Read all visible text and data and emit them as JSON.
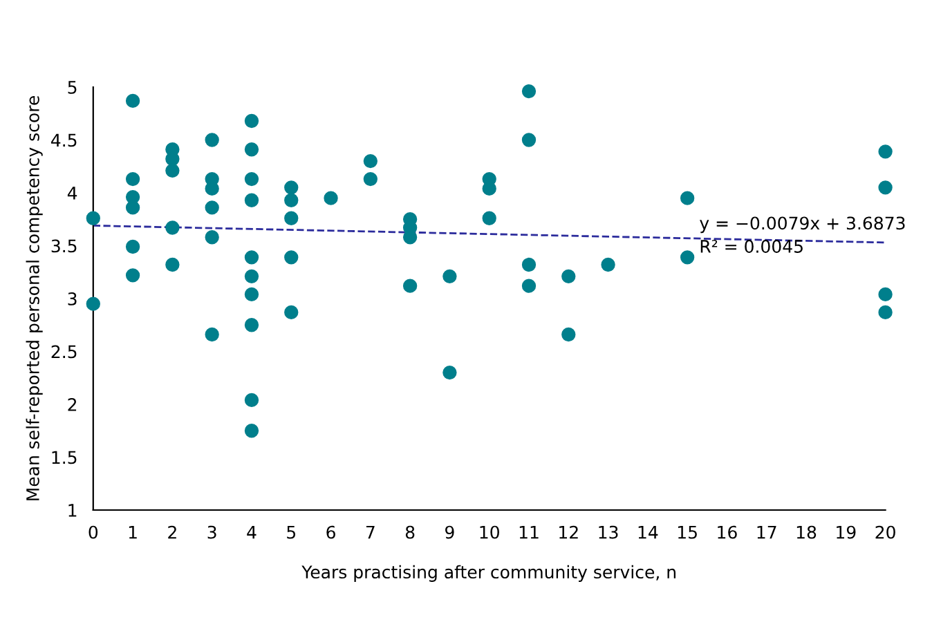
{
  "chart_data": {
    "type": "scatter",
    "xlabel": "Years practising after community service, n",
    "ylabel": "Mean self-reported personal competency score",
    "xlim": [
      0,
      20
    ],
    "xticks": [
      0,
      1,
      2,
      3,
      4,
      5,
      6,
      7,
      8,
      9,
      10,
      11,
      12,
      13,
      14,
      15,
      16,
      17,
      18,
      19,
      20
    ],
    "ylim": [
      1,
      5
    ],
    "yticks": [
      1,
      1.5,
      2,
      2.5,
      3,
      3.5,
      4,
      4.5,
      5
    ],
    "grid": false,
    "legend": false,
    "series": [
      {
        "color": "#007f8c",
        "marker": "circle",
        "x": [
          0,
          0,
          1,
          1,
          1,
          1,
          1,
          1,
          2,
          2,
          2,
          2,
          2,
          3,
          3,
          3,
          3,
          3,
          3,
          4,
          4,
          4,
          4,
          4,
          4,
          4,
          4,
          4,
          4,
          5,
          5,
          5,
          5,
          5,
          6,
          7,
          7,
          8,
          8,
          8,
          8,
          9,
          9,
          10,
          10,
          10,
          11,
          11,
          11,
          11,
          12,
          12,
          13,
          15,
          15,
          20,
          20,
          20,
          20
        ],
        "values": [
          3.76,
          2.95,
          4.87,
          4.13,
          3.96,
          3.86,
          3.49,
          3.22,
          4.41,
          4.32,
          4.21,
          3.67,
          3.32,
          4.5,
          4.13,
          4.04,
          3.86,
          3.58,
          2.66,
          4.68,
          4.41,
          4.13,
          3.93,
          3.39,
          3.21,
          3.04,
          2.75,
          2.04,
          1.75,
          4.05,
          3.93,
          3.76,
          3.39,
          2.87,
          3.95,
          4.3,
          4.13,
          3.75,
          3.67,
          3.58,
          3.12,
          3.21,
          2.3,
          4.13,
          4.04,
          3.76,
          4.96,
          4.5,
          3.32,
          3.12,
          3.21,
          2.66,
          3.32,
          3.95,
          3.39,
          4.39,
          4.05,
          3.04,
          2.87
        ]
      },
      {
        "type": "line",
        "color": "#2b2b9c",
        "line_style": "dashed",
        "marker": "none",
        "x": [
          0,
          20
        ],
        "values": [
          3.69,
          3.53
        ]
      }
    ],
    "annotations": [
      {
        "text": "y = −0.0079x + 3.6873",
        "x": 15.3,
        "y": 3.62
      },
      {
        "text": "R² = 0.0045",
        "x": 15.3,
        "y": 3.4
      }
    ]
  }
}
